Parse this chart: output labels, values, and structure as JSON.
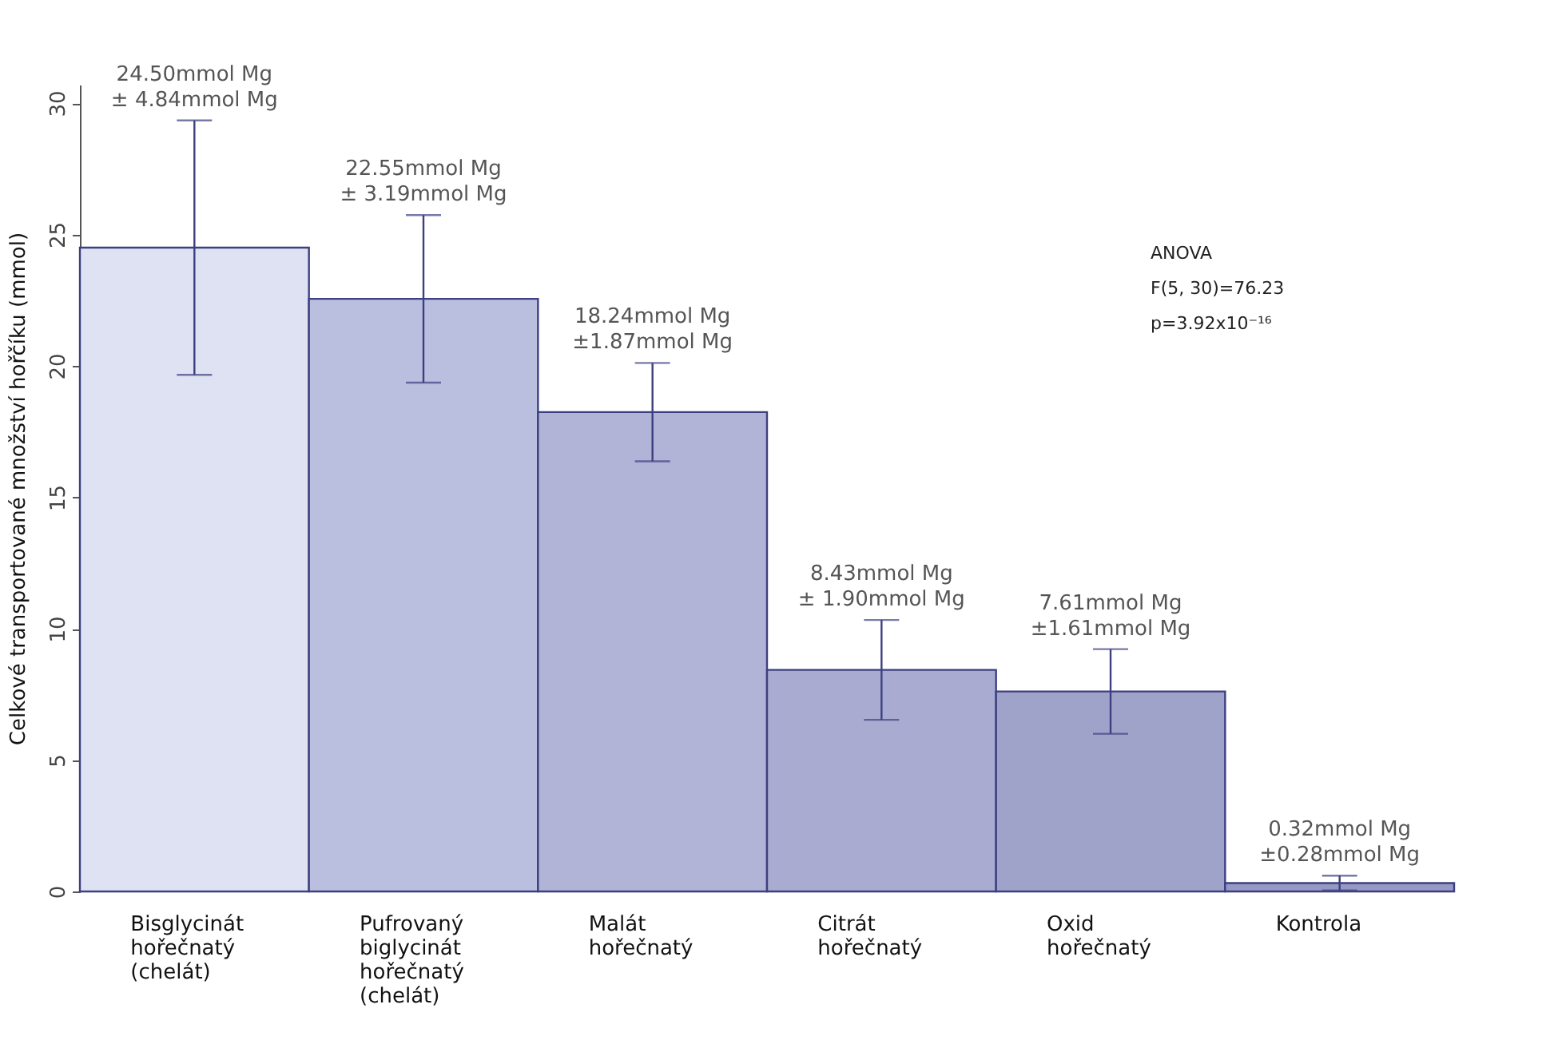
{
  "chart_data": {
    "type": "bar",
    "ylabel": "Celkové transportované množství hořčíku (mmol)",
    "categories": [
      "Bisglycinát\nhořečnatý\n(chelát)",
      "Pufrovaný\nbiglycinát\nhořečnatý\n(chelát)",
      "Malát\nhořečnatý",
      "Citrát\nhořečnatý",
      "Oxid\nhořečnatý",
      "Kontrola"
    ],
    "values": [
      24.5,
      22.55,
      18.24,
      8.43,
      7.61,
      0.32
    ],
    "errors": [
      4.84,
      3.19,
      1.87,
      1.9,
      1.61,
      0.28
    ],
    "value_labels": [
      "24.50mmol Mg\n± 4.84mmol Mg",
      "22.55mmol Mg\n± 3.19mmol Mg",
      "18.24mmol Mg\n±1.87mmol Mg",
      "8.43mmol Mg\n± 1.90mmol Mg",
      "7.61mmol Mg\n±1.61mmol Mg",
      "0.32mmol Mg\n±0.28mmol Mg"
    ],
    "colors": [
      "#dfe2f2",
      "#bbbfdf",
      "#b1b4d7",
      "#a9acd0",
      "#a0a3c9",
      "#9599c4"
    ],
    "ylim": [
      0,
      30.7
    ],
    "yticks": [
      0,
      5,
      10,
      15,
      20,
      25,
      30
    ],
    "annotations": [
      "ANOVA",
      "F(5, 30)=76.23",
      "p=3.92x10⁻¹⁶"
    ],
    "grid": false,
    "legend": false
  }
}
